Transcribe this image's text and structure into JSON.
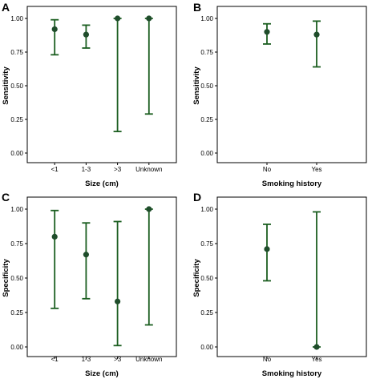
{
  "chart_data": [
    {
      "panel": "A",
      "type": "scatter",
      "title": "",
      "xlabel": "Size (cm)",
      "ylabel": "Sensitivity",
      "categories": [
        "<1",
        "1-3",
        ">3",
        "Unknown"
      ],
      "values": [
        0.92,
        0.88,
        1.0,
        1.0
      ],
      "ci_lower": [
        0.73,
        0.78,
        0.16,
        0.29
      ],
      "ci_upper": [
        0.99,
        0.95,
        1.0,
        1.0
      ],
      "ylim": [
        0,
        1
      ],
      "yticks": [
        "0.00",
        "0.25",
        "0.50",
        "0.75",
        "1.00"
      ]
    },
    {
      "panel": "B",
      "type": "scatter",
      "title": "",
      "xlabel": "Smoking history",
      "ylabel": "Sensitivity",
      "categories": [
        "No",
        "Yes"
      ],
      "values": [
        0.9,
        0.88
      ],
      "ci_lower": [
        0.81,
        0.64
      ],
      "ci_upper": [
        0.96,
        0.98
      ],
      "ylim": [
        0,
        1
      ],
      "yticks": [
        "0.00",
        "0.25",
        "0.50",
        "0.75",
        "1.00"
      ]
    },
    {
      "panel": "C",
      "type": "scatter",
      "title": "",
      "xlabel": "Size (cm)",
      "ylabel": "Specificity",
      "categories": [
        "<1",
        "1-3",
        ">3",
        "Unknown"
      ],
      "values": [
        0.8,
        0.67,
        0.33,
        1.0
      ],
      "ci_lower": [
        0.28,
        0.35,
        0.01,
        0.16
      ],
      "ci_upper": [
        0.99,
        0.9,
        0.91,
        1.0
      ],
      "ylim": [
        0,
        1
      ],
      "yticks": [
        "0.00",
        "0.25",
        "0.50",
        "0.75",
        "1.00"
      ]
    },
    {
      "panel": "D",
      "type": "scatter",
      "title": "",
      "xlabel": "Smoking history",
      "ylabel": "Specificity",
      "categories": [
        "No",
        "Yes"
      ],
      "values": [
        0.71,
        0.0
      ],
      "ci_lower": [
        0.48,
        0.0
      ],
      "ci_upper": [
        0.89,
        0.98
      ],
      "ylim": [
        0,
        1
      ],
      "yticks": [
        "0.00",
        "0.25",
        "0.50",
        "0.75",
        "1.00"
      ]
    }
  ],
  "colors": {
    "point": "#1f4d2b",
    "errorbar": "#1b5e20",
    "axis": "#000000"
  }
}
